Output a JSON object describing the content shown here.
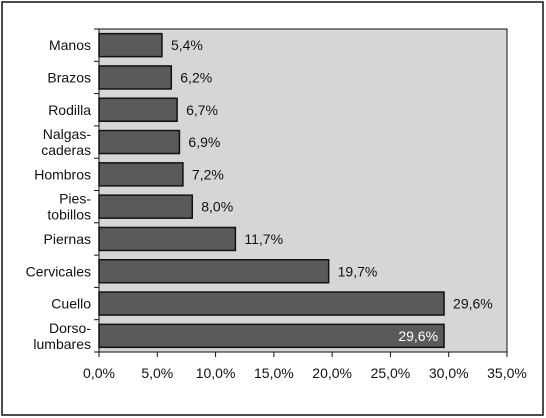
{
  "chart_data": {
    "type": "bar",
    "orientation": "horizontal",
    "categories": [
      [
        "Manos"
      ],
      [
        "Brazos"
      ],
      [
        "Rodilla"
      ],
      [
        "Nalgas-",
        "caderas"
      ],
      [
        "Hombros"
      ],
      [
        "Pies-",
        "tobillos"
      ],
      [
        "Piernas"
      ],
      [
        "Cervicales"
      ],
      [
        "Cuello"
      ],
      [
        "Dorso-",
        "lumbares"
      ]
    ],
    "values": [
      5.4,
      6.2,
      6.7,
      6.9,
      7.2,
      8.0,
      11.7,
      19.7,
      29.6,
      29.6
    ],
    "data_labels": [
      "5,4%",
      "6,2%",
      "6,7%",
      "6,9%",
      "7,2%",
      "8,0%",
      "11,7%",
      "19,7%",
      "29,6%",
      "29,6%"
    ],
    "xlim": [
      0,
      35
    ],
    "xticks": [
      0,
      5,
      10,
      15,
      20,
      25,
      30,
      35
    ],
    "xtick_labels": [
      "0,0%",
      "5,0%",
      "10,0%",
      "15,0%",
      "20,0%",
      "25,0%",
      "30,0%",
      "35,0%"
    ],
    "grid": false,
    "colors": {
      "plot_background": "#d6d6d6",
      "bar_fill": "#5a5a5a",
      "bar_stroke": "#111111",
      "label_inside": "#ffffff"
    }
  }
}
